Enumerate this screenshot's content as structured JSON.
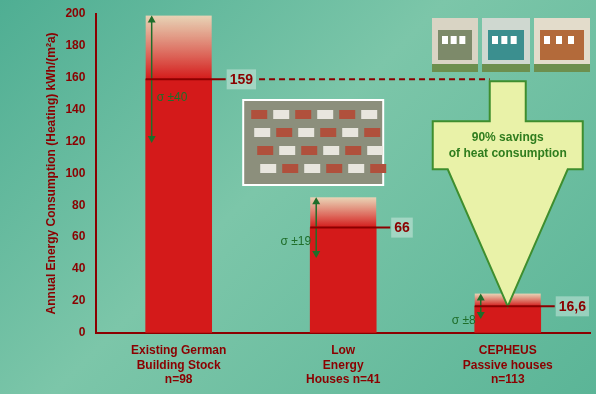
{
  "chart_data": {
    "type": "bar",
    "y_label": "Annual Energy Consumption (Heating) kWh/(m²a)",
    "categories": [
      [
        "Existing German",
        "Building Stock",
        "n=98"
      ],
      [
        "Low",
        "Energy",
        "Houses n=41"
      ],
      [
        "CEPHEUS",
        "Passive houses",
        "n=113"
      ]
    ],
    "values": [
      159,
      66,
      16.6
    ],
    "value_labels": [
      "159",
      "66",
      "16,6"
    ],
    "errors": [
      40,
      19,
      8
    ],
    "error_labels": [
      "σ ±40",
      "σ ±19",
      "σ ±8"
    ],
    "color": "#d41a1a",
    "ylim": [
      0,
      200
    ],
    "yticks": [
      0,
      20,
      40,
      60,
      80,
      100,
      120,
      140,
      160,
      180,
      200
    ],
    "grid": false,
    "data_labels": true,
    "annotations": [
      {
        "text": [
          "90% savings",
          "of heat consumption"
        ]
      }
    ]
  }
}
